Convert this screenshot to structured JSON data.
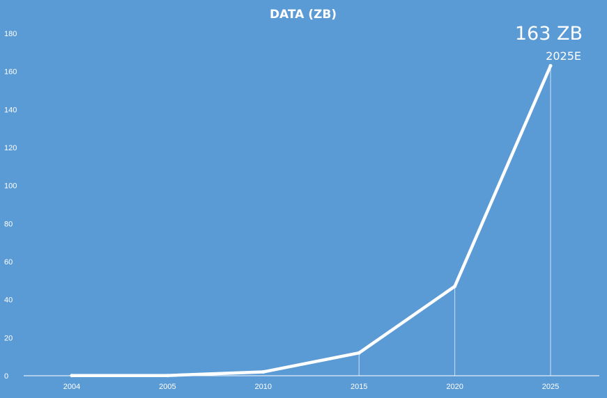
{
  "chart_data": {
    "type": "line",
    "title": "DATA (ZB)",
    "xlabel": "",
    "ylabel": "",
    "categories": [
      "2004",
      "2005",
      "2010",
      "2015",
      "2020",
      "2025"
    ],
    "values": [
      0.1,
      0.1,
      2,
      12,
      47,
      163
    ],
    "ylim": [
      0,
      180
    ],
    "yticks": [
      "0",
      "20",
      "40",
      "60",
      "80",
      "100",
      "120",
      "140",
      "160",
      "180"
    ],
    "grid": false,
    "legend": "none",
    "annotation": {
      "value_label": "163 ZB",
      "category_label": "2025E"
    },
    "colors": {
      "background": "#5b9bd5",
      "line": "#ffffff",
      "text": "#ffffff"
    }
  }
}
